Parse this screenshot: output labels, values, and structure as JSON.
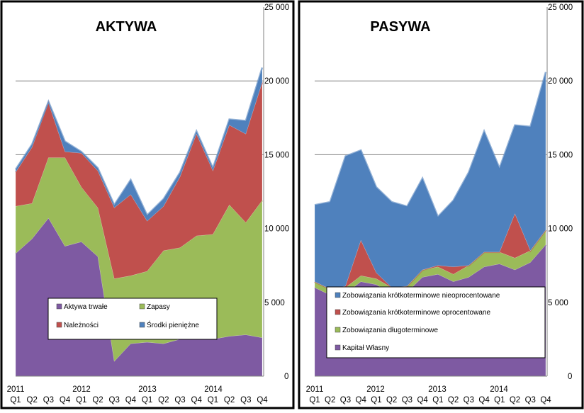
{
  "chart_data": [
    {
      "type": "area",
      "stacked": true,
      "title": "AKTYWA",
      "xlabel": "",
      "ylabel": "",
      "ylim": [
        0,
        25000
      ],
      "yticks": [
        "0",
        "5 000",
        "10 000",
        "15 000",
        "20 000",
        "25 000"
      ],
      "quarter_labels": [
        "Q1",
        "Q2",
        "Q3",
        "Q4",
        "Q1",
        "Q2",
        "Q3",
        "Q4",
        "Q1",
        "Q2",
        "Q3",
        "Q4",
        "Q1",
        "Q2",
        "Q3",
        "Q4"
      ],
      "year_labels": [
        "2011",
        "2012",
        "2013",
        "2014"
      ],
      "grid": "horizontal at 20 000 and 15 000",
      "legend_position": "bottom-center",
      "series": [
        {
          "name": "Aktywa trwałe",
          "color": "#7E5AA2",
          "values": [
            8300,
            9300,
            10700,
            8800,
            9100,
            8100,
            1000,
            2200,
            2300,
            2200,
            2500,
            2500,
            2500,
            2700,
            2800,
            2600
          ]
        },
        {
          "name": "Zapasy",
          "color": "#9BBB59",
          "values": [
            3200,
            2400,
            4100,
            6000,
            3700,
            3300,
            5600,
            4600,
            4800,
            6300,
            6200,
            7000,
            7100,
            8900,
            7600,
            9300
          ]
        },
        {
          "name": "Należności",
          "color": "#C0504D",
          "values": [
            2300,
            3800,
            3700,
            400,
            2300,
            2500,
            4800,
            5500,
            3400,
            3000,
            4800,
            6900,
            4300,
            5400,
            6000,
            8000
          ]
        },
        {
          "name": "Środki pieniężne",
          "color": "#4F81BD",
          "values": [
            200,
            200,
            100,
            700,
            100,
            200,
            200,
            1000,
            400,
            500,
            300,
            200,
            200,
            400,
            900,
            1000
          ]
        }
      ]
    },
    {
      "type": "area",
      "stacked": true,
      "title": "PASYWA",
      "xlabel": "",
      "ylabel": "",
      "ylim": [
        0,
        25000
      ],
      "yticks": [
        "0",
        "5 000",
        "10 000",
        "15 000",
        "20 000",
        "25 000"
      ],
      "quarter_labels": [
        "Q1",
        "Q2",
        "Q3",
        "Q4",
        "Q1",
        "Q2",
        "Q3",
        "Q4",
        "Q1",
        "Q2",
        "Q3",
        "Q4",
        "Q1",
        "Q2",
        "Q3",
        "Q4"
      ],
      "year_labels": [
        "2011",
        "2012",
        "2013",
        "2014"
      ],
      "grid": "horizontal at 20 000 and 15 000",
      "legend_position": "bottom-center",
      "series": [
        {
          "name": "Kapitał Własny",
          "color": "#7E5AA2",
          "values": [
            6000,
            5500,
            5600,
            6400,
            6200,
            5600,
            5700,
            6700,
            6900,
            6400,
            6700,
            7400,
            7600,
            7200,
            7700,
            8900
          ]
        },
        {
          "name": "Zobowiązania długoterminowe",
          "color": "#9BBB59",
          "values": [
            400,
            400,
            400,
            400,
            400,
            400,
            400,
            500,
            500,
            500,
            800,
            1000,
            800,
            800,
            800,
            1000
          ]
        },
        {
          "name": "Zobowiązania krótkoterminowe oprocentowane",
          "color": "#C0504D",
          "values": [
            0,
            0,
            100,
            2400,
            400,
            0,
            0,
            0,
            100,
            500,
            0,
            0,
            0,
            3000,
            0,
            0
          ]
        },
        {
          "name": "Zobowiązania krótkoterminowe nieoprocentowane",
          "color": "#4F81BD",
          "values": [
            5200,
            5900,
            8800,
            6100,
            5800,
            5800,
            5400,
            6200,
            3300,
            4500,
            6300,
            8200,
            5700,
            6000,
            8400,
            10700
          ]
        }
      ]
    }
  ]
}
